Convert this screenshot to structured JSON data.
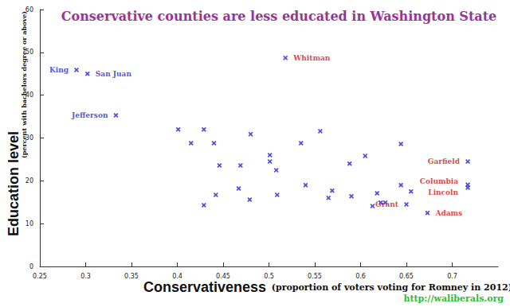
{
  "chart_data": {
    "type": "scatter",
    "title": "Conservative counties are less educated in Washington State",
    "xlabel": "Conservativeness",
    "xlabel_note": "(proportion of voters voting for Romney in 2012)",
    "ylabel": "Education level",
    "ylabel_note": "(percent with bachelors degree or above)",
    "source": "http://waliberals.org",
    "x": [
      0.29,
      0.302,
      0.333,
      0.518,
      0.717,
      0.717,
      0.717,
      0.65,
      0.673,
      0.401,
      0.415,
      0.429,
      0.44,
      0.446,
      0.429,
      0.442,
      0.467,
      0.469,
      0.48,
      0.479,
      0.501,
      0.501,
      0.508,
      0.509,
      0.535,
      0.556,
      0.54,
      0.565,
      0.569,
      0.588,
      0.59,
      0.605,
      0.613,
      0.618,
      0.622,
      0.627,
      0.644,
      0.644,
      0.655
    ],
    "values": [
      45.9,
      45.0,
      35.3,
      48.7,
      24.5,
      19.1,
      18.4,
      14.5,
      12.5,
      32.0,
      28.8,
      32.0,
      28.8,
      23.6,
      14.3,
      16.7,
      18.2,
      23.6,
      30.9,
      15.6,
      26.0,
      24.5,
      22.5,
      16.7,
      28.8,
      31.6,
      19.0,
      16.0,
      17.7,
      24.0,
      16.4,
      25.8,
      14.1,
      17.1,
      14.9,
      14.9,
      28.6,
      19.0,
      17.5
    ],
    "point_labels": [
      "King",
      "San Juan",
      "Jefferson",
      "Whitman",
      "Garfield",
      "Columbia",
      "Lincoln",
      "Grant",
      "Adams",
      null,
      null,
      null,
      null,
      null,
      null,
      null,
      null,
      null,
      null,
      null,
      null,
      null,
      null,
      null,
      null,
      null,
      null,
      null,
      null,
      null,
      null,
      null,
      null,
      null,
      null,
      null,
      null,
      null,
      null
    ],
    "label_colors": [
      "#2a2ad0",
      "#2a2ad0",
      "#2a2ad0",
      "#d01818",
      "#d01818",
      "#d01818",
      "#d01818",
      "#d01818",
      "#d01818",
      null,
      null,
      null,
      null,
      null,
      null,
      null,
      null,
      null,
      null,
      null,
      null,
      null,
      null,
      null,
      null,
      null,
      null,
      null,
      null,
      null,
      null,
      null,
      null,
      null,
      null,
      null,
      null,
      null,
      null
    ],
    "color": "#2020d8",
    "marker": "x",
    "xlim": [
      0.25,
      0.75
    ],
    "xticks": [
      0.25,
      0.3,
      0.35,
      0.4,
      0.45,
      0.5,
      0.55,
      0.6,
      0.65,
      0.7
    ],
    "ylim": [
      0,
      60
    ],
    "yticks": [
      0,
      10,
      20,
      30,
      40,
      50,
      60
    ],
    "grid": false
  }
}
